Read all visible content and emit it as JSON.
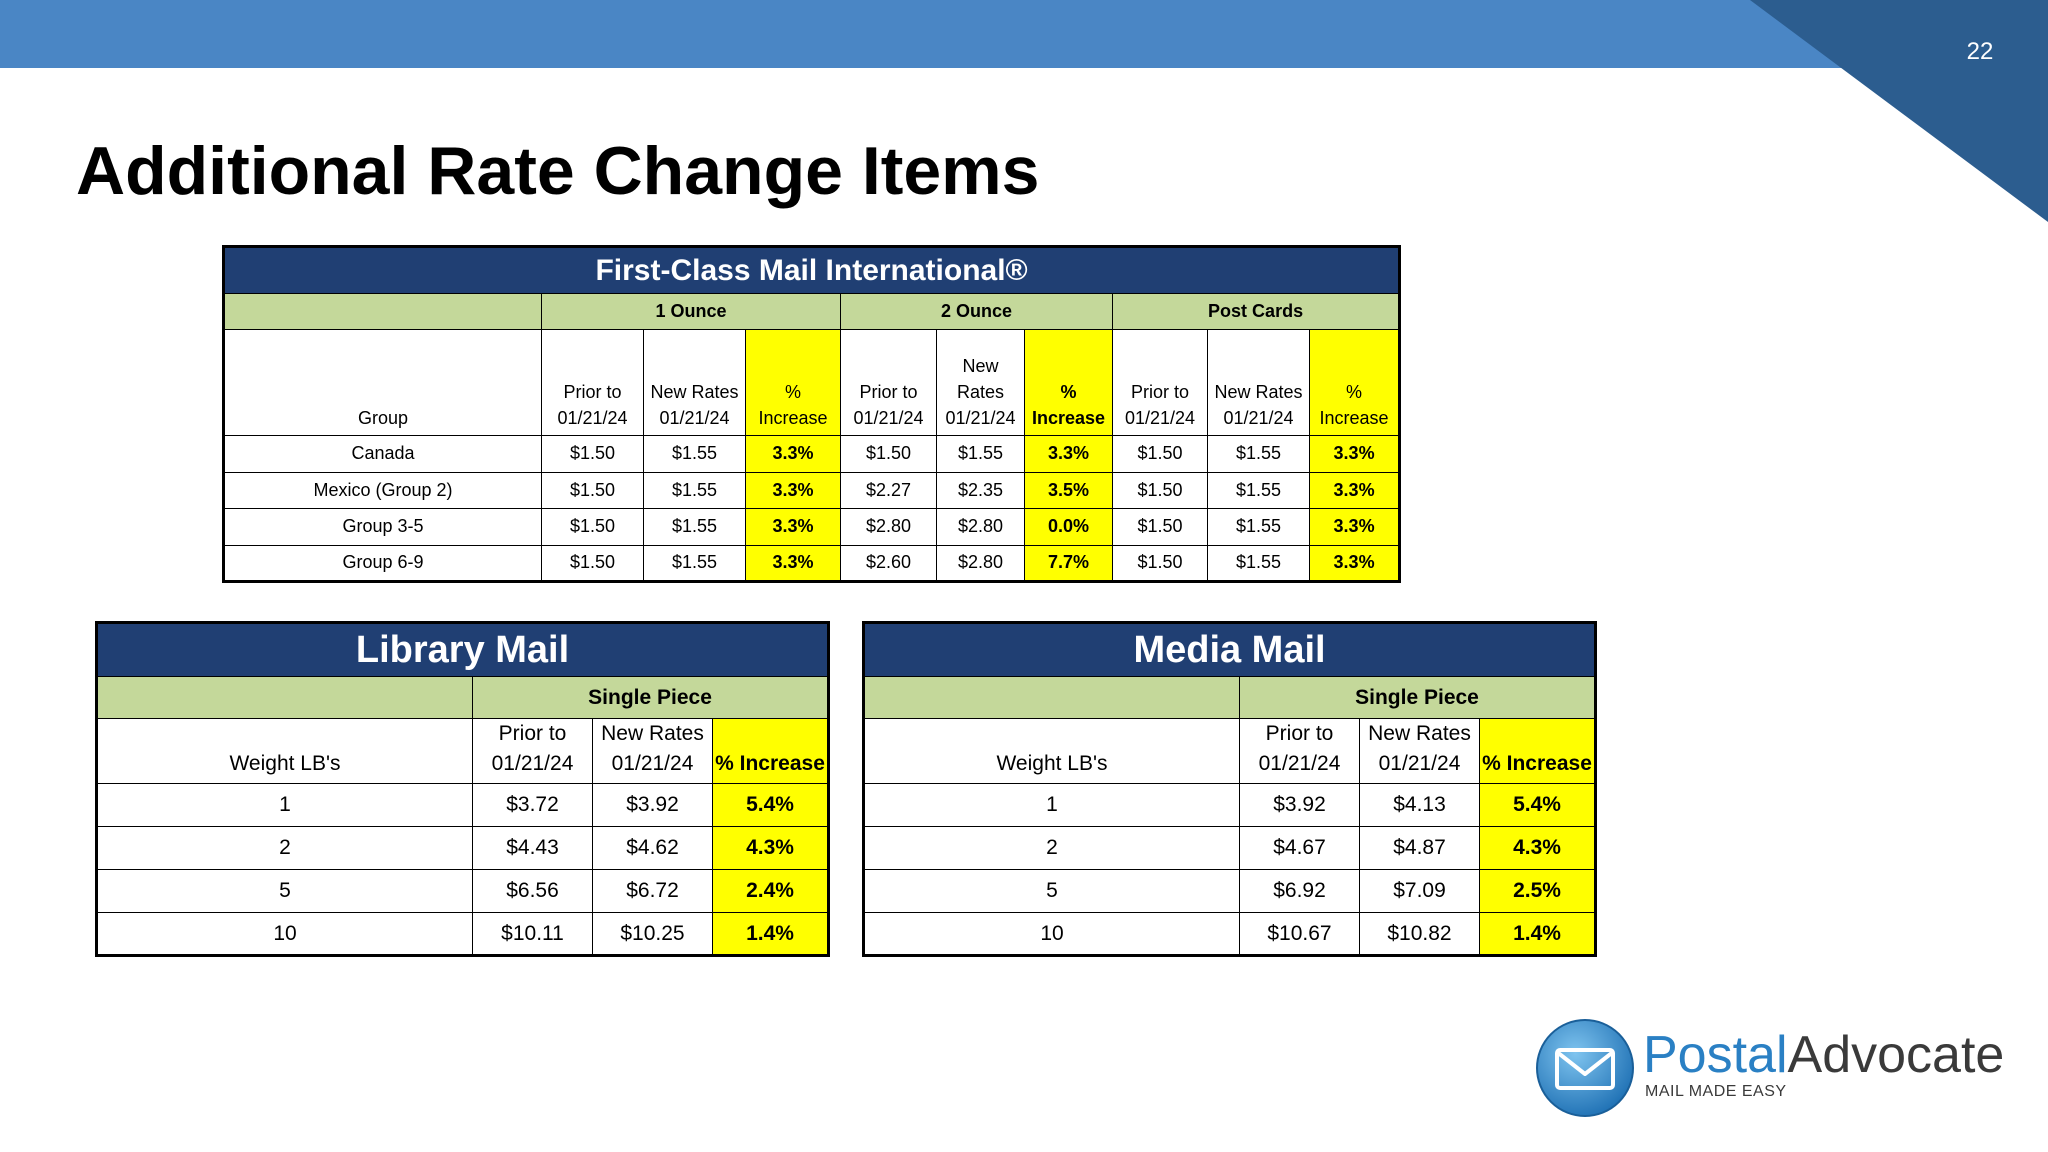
{
  "slide": {
    "page_number": "22",
    "title": "Additional Rate Change Items"
  },
  "colors": {
    "top_bar": "#4a86c5",
    "corner_dark": "#2c5d8f",
    "table_header": "#203f73",
    "group_green": "#c4d89a",
    "highlight_yellow": "#ffff00"
  },
  "fcmi": {
    "title": "First-Class Mail International®",
    "groups": [
      "1 Ounce",
      "2 Ounce",
      "Post Cards"
    ],
    "headers": [
      "Group",
      "Prior to 01/21/24",
      "New Rates 01/21/24",
      "% Increase",
      "Prior to 01/21/24",
      "New Rates 01/21/24",
      "% Increase",
      "Prior to 01/21/24",
      "New Rates 01/21/24",
      "% Increase"
    ],
    "rows": [
      [
        "Canada",
        "$1.50",
        "$1.55",
        "3.3%",
        "$1.50",
        "$1.55",
        "3.3%",
        "$1.50",
        "$1.55",
        "3.3%"
      ],
      [
        "Mexico (Group 2)",
        "$1.50",
        "$1.55",
        "3.3%",
        "$2.27",
        "$2.35",
        "3.5%",
        "$1.50",
        "$1.55",
        "3.3%"
      ],
      [
        "Group 3-5",
        "$1.50",
        "$1.55",
        "3.3%",
        "$2.80",
        "$2.80",
        "0.0%",
        "$1.50",
        "$1.55",
        "3.3%"
      ],
      [
        "Group 6-9",
        "$1.50",
        "$1.55",
        "3.3%",
        "$2.60",
        "$2.80",
        "7.7%",
        "$1.50",
        "$1.55",
        "3.3%"
      ]
    ]
  },
  "library": {
    "title": "Library Mail",
    "group": "Single Piece",
    "headers": [
      "Weight LB's",
      "Prior to 01/21/24",
      "New Rates 01/21/24",
      "% Increase"
    ],
    "rows": [
      [
        "1",
        "$3.72",
        "$3.92",
        "5.4%"
      ],
      [
        "2",
        "$4.43",
        "$4.62",
        "4.3%"
      ],
      [
        "5",
        "$6.56",
        "$6.72",
        "2.4%"
      ],
      [
        "10",
        "$10.11",
        "$10.25",
        "1.4%"
      ]
    ]
  },
  "media": {
    "title": "Media Mail",
    "group": "Single Piece",
    "headers": [
      "Weight LB's",
      "Prior to 01/21/24",
      "New Rates 01/21/24",
      "% Increase"
    ],
    "rows": [
      [
        "1",
        "$3.92",
        "$4.13",
        "5.4%"
      ],
      [
        "2",
        "$4.67",
        "$4.87",
        "4.3%"
      ],
      [
        "5",
        "$6.92",
        "$7.09",
        "2.5%"
      ],
      [
        "10",
        "$10.67",
        "$10.82",
        "1.4%"
      ]
    ]
  },
  "logo": {
    "brand_part1": "Postal",
    "brand_part2": "Advocate",
    "tagline": "MAIL MADE EASY",
    "icon": "envelope-icon"
  }
}
